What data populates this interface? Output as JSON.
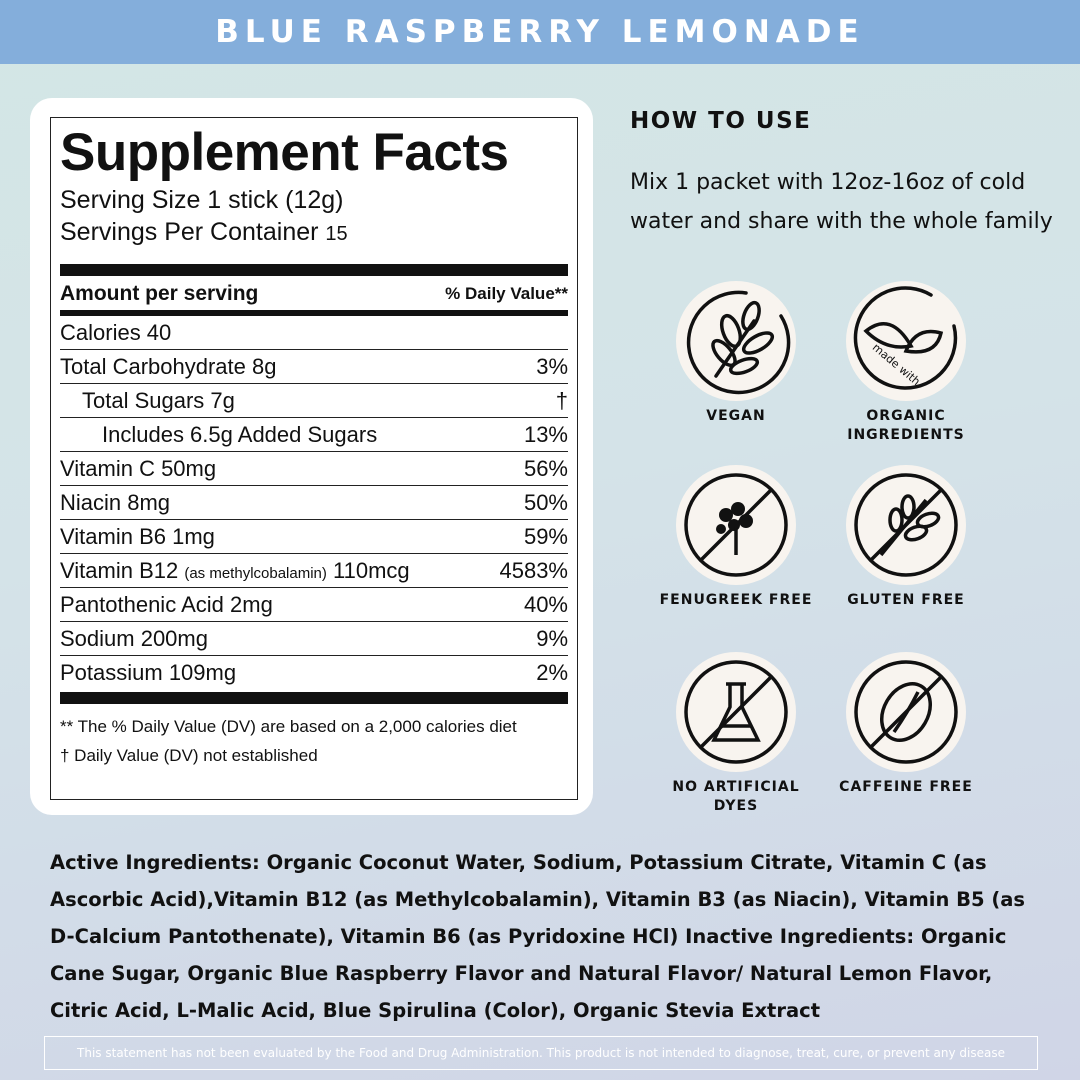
{
  "header": {
    "title": "BLUE RASPBERRY LEMONADE"
  },
  "facts": {
    "title": "Supplement Facts",
    "serving_size": "Serving Size 1 stick (12g)",
    "servings_label": "Servings Per Container",
    "servings_value": "15",
    "amount_header": "Amount per serving",
    "dv_header": "% Daily Value**",
    "calories": "Calories 40",
    "rows": [
      {
        "name": "Total Carbohydrate 8g",
        "dv": "3%"
      },
      {
        "name": "Total Sugars 7g",
        "dv": "†"
      },
      {
        "name": "Includes 6.5g Added Sugars",
        "dv": "13%"
      },
      {
        "name": "Vitamin C 50mg",
        "dv": "56%"
      },
      {
        "name": "Niacin 8mg",
        "dv": "50%"
      },
      {
        "name": "Vitamin B6 1mg",
        "dv": "59%"
      },
      {
        "name": "Vitamin B12",
        "note": "(as methylcobalamin)",
        "amount": "110mcg",
        "dv": "4583%"
      },
      {
        "name": "Pantothenic Acid 2mg",
        "dv": "40%"
      },
      {
        "name": "Sodium 200mg",
        "dv": "9%"
      },
      {
        "name": "Potassium 109mg",
        "dv": "2%"
      }
    ],
    "footnote1": "** The % Daily Value (DV) are based on a  2,000 calories diet",
    "footnote2": "† Daily Value (DV) not established"
  },
  "how_to_use": {
    "title": "HOW TO USE",
    "text": "Mix 1 packet with 12oz-16oz of cold water and share with the whole family"
  },
  "badges": [
    {
      "icon": "leaf-branch-icon",
      "label": "VEGAN"
    },
    {
      "icon": "leaves-made-with-icon",
      "label": "ORGANIC INGREDIENTS",
      "icon_text": "made with"
    },
    {
      "icon": "fenugreek-free-icon",
      "label": "FENUGREEK FREE"
    },
    {
      "icon": "gluten-free-icon",
      "label": "GLUTEN FREE"
    },
    {
      "icon": "flask-free-icon",
      "label": "NO ARTIFICIAL DYES"
    },
    {
      "icon": "coffee-bean-free-icon",
      "label": "CAFFEINE FREE"
    }
  ],
  "ingredients": "Active Ingredients: Organic Coconut Water, Sodium, Potassium Citrate, Vitamin C (as Ascorbic Acid),Vitamin B12 (as Methylcobalamin), Vitamin B3 (as Niacin), Vitamin B5 (as D-Calcium Pantothenate), Vitamin B6 (as Pyridoxine HCl) Inactive Ingredients: Organic Cane Sugar, Organic Blue Raspberry Flavor and Natural Flavor/ Natural Lemon Flavor, Citric Acid, L-Malic Acid, Blue Spirulina (Color), Organic Stevia Extract",
  "disclaimer": "This statement has not been evaluated by the Food and Drug Administration. This product is not intended to diagnose, treat, cure, or prevent any disease",
  "colors": {
    "header": "#84aedb",
    "badge_bg": "#f8f4ef"
  }
}
